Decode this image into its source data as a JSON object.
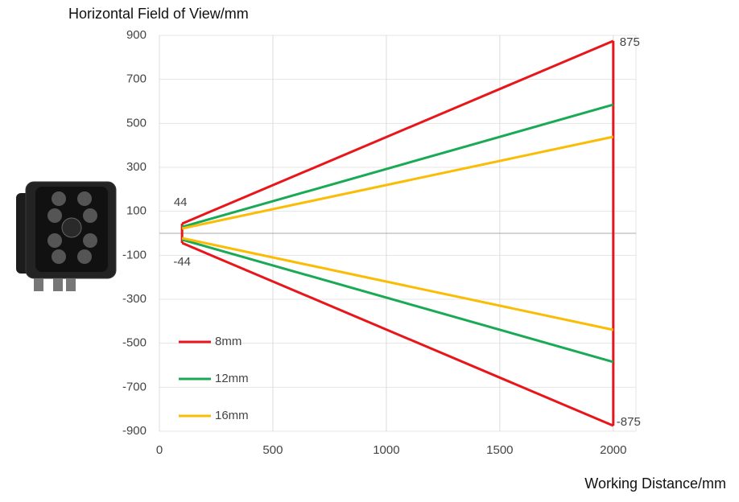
{
  "chart_data": {
    "type": "line",
    "y_title": "Horizontal Field of View/mm",
    "x_title": "Working Distance/mm",
    "x": [
      100,
      2000
    ],
    "series": [
      {
        "name": "8mm",
        "color": "#e8161b",
        "values": [
          44,
          875
        ],
        "lower_values": [
          -44,
          -875
        ]
      },
      {
        "name": "12mm",
        "color": "#1aaa55",
        "values": [
          29,
          585
        ],
        "lower_values": [
          -29,
          -585
        ]
      },
      {
        "name": "16mm",
        "color": "#fbbc05",
        "values": [
          22,
          439
        ],
        "lower_values": [
          -22,
          -439
        ]
      }
    ],
    "xlim": [
      0,
      2100
    ],
    "xticks": [
      0,
      500,
      1000,
      1500,
      2000
    ],
    "ylim": [
      -900,
      900
    ],
    "yticks": [
      900,
      700,
      500,
      300,
      100,
      -100,
      -300,
      -500,
      -700,
      -900
    ],
    "grid": true,
    "legend": "lower left"
  }
}
